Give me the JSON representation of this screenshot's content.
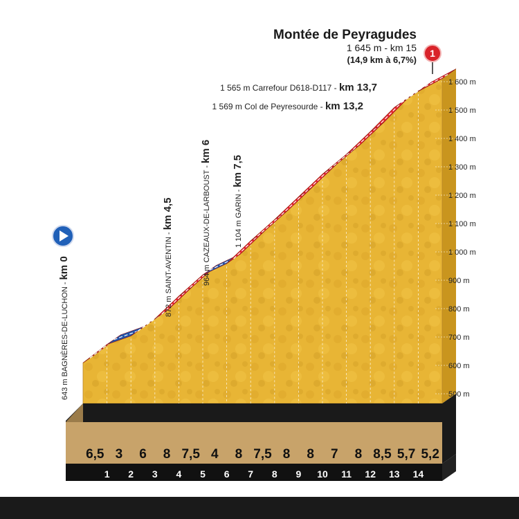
{
  "chart_data": {
    "type": "area",
    "title": "Montée de Peyragudes",
    "subtitle_1": "1 645 m - km 15",
    "subtitle_2": "(14,9 km à 6,7%)",
    "xlabel": "",
    "ylabel": "",
    "y_unit": "m",
    "ylim": [
      500,
      1700
    ],
    "y_ticks": [
      "500 m",
      "600 m",
      "700 m",
      "800 m",
      "900 m",
      "1 000 m",
      "1 100 m",
      "1 200 m",
      "1 300 m",
      "1 400 m",
      "1 500 m",
      "1 600 m"
    ],
    "x_ticks": [
      "1",
      "2",
      "3",
      "4",
      "5",
      "6",
      "7",
      "8",
      "9",
      "10",
      "11",
      "12",
      "13",
      "14"
    ],
    "xlim": [
      0,
      15
    ],
    "gradients": [
      "6,5",
      "3",
      "6",
      "8",
      "7,5",
      "4",
      "8",
      "7,5",
      "8",
      "8",
      "7",
      "8",
      "8,5",
      "5,7",
      "5,2"
    ],
    "profile": {
      "x": [
        0,
        1,
        2,
        3,
        4,
        5,
        6,
        7,
        8,
        9,
        10,
        11,
        12,
        13,
        14,
        15
      ],
      "y": [
        643,
        708,
        738,
        798,
        878,
        953,
        993,
        1073,
        1148,
        1228,
        1308,
        1378,
        1458,
        1543,
        1600,
        1645
      ]
    },
    "points": [
      {
        "name": "643 m BAGNÈRES-DE-LUCHON",
        "km": "km 0"
      },
      {
        "name": "872 m SAINT-AVENTIN",
        "km": "km 4,5"
      },
      {
        "name": "964 m CAZEAUX-DE-LARBOUST",
        "km": "km 6"
      },
      {
        "name": "1 104 m GARIN",
        "km": "km 7,5"
      },
      {
        "name": "1 569 m Col de Peyresourde",
        "km": "km 13,2"
      },
      {
        "name": "1 565 m Carrefour D618-D117",
        "km": "km 13,7"
      }
    ],
    "finish_marker": "1",
    "grid": true,
    "colors": {
      "terrain": "#e8b535",
      "terrain_dark": "#c9951e",
      "slope_red": "#e8252e",
      "slope_blue": "#2355a8",
      "base": "#1a1a1a",
      "start_icon": "#2060b8",
      "finish_icon": "#d9232a"
    }
  },
  "icons": {
    "start": "play-circle-icon",
    "finish": "numbered-circle-icon"
  }
}
